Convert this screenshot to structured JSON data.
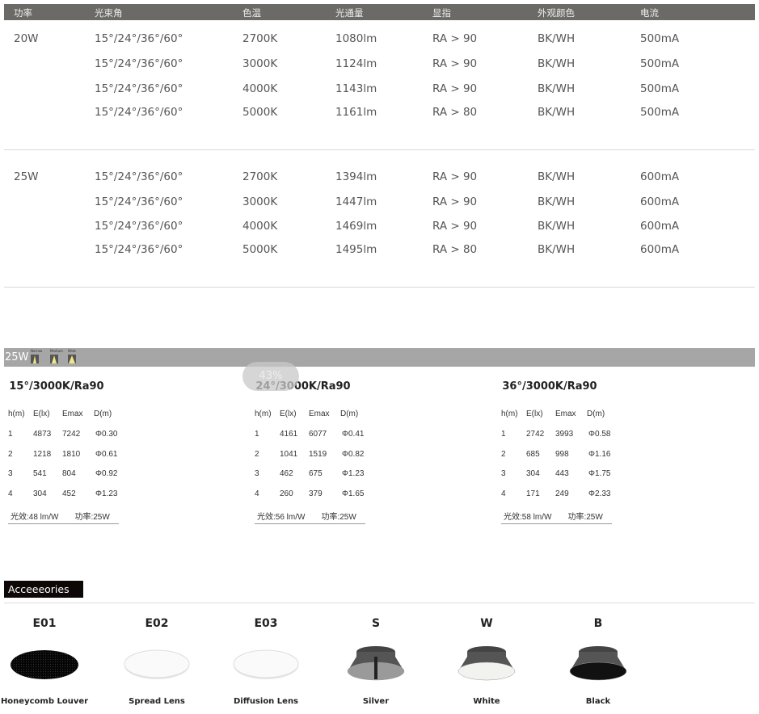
{
  "spec_table": {
    "headers": [
      "功率",
      "光束角",
      "色温",
      "光通量",
      "显指",
      "外观颜色",
      "电流"
    ],
    "groups": [
      {
        "power": "20W",
        "rows": [
          [
            "15°/24°/36°/60°",
            "2700K",
            "1080lm",
            "RA > 90",
            "BK/WH",
            "500mA"
          ],
          [
            "15°/24°/36°/60°",
            "3000K",
            "1124lm",
            "RA > 90",
            "BK/WH",
            "500mA"
          ],
          [
            "15°/24°/36°/60°",
            "4000K",
            "1143lm",
            "RA > 90",
            "BK/WH",
            "500mA"
          ],
          [
            "15°/24°/36°/60°",
            "5000K",
            "1161lm",
            "RA > 80",
            "BK/WH",
            "500mA"
          ]
        ]
      },
      {
        "power": "25W",
        "rows": [
          [
            "15°/24°/36°/60°",
            "2700K",
            "1394lm",
            "RA > 90",
            "BK/WH",
            "600mA"
          ],
          [
            "15°/24°/36°/60°",
            "3000K",
            "1447lm",
            "RA > 90",
            "BK/WH",
            "600mA"
          ],
          [
            "15°/24°/36°/60°",
            "4000K",
            "1469lm",
            "RA > 90",
            "BK/WH",
            "600mA"
          ],
          [
            "15°/24°/36°/60°",
            "5000K",
            "1495lm",
            "RA > 80",
            "BK/WH",
            "600mA"
          ]
        ]
      }
    ]
  },
  "photometric": {
    "power": "25W",
    "beam_icons": [
      {
        "label": "Narrow"
      },
      {
        "label": "Medium"
      },
      {
        "label": "Wide"
      }
    ],
    "zoom_overlay": "43%",
    "columns": [
      "h(m)",
      "E(lx)",
      "Emax",
      "D(m)"
    ],
    "blocks": [
      {
        "title": "15°/3000K/Ra90",
        "rows": [
          [
            "1",
            "4873",
            "7242",
            "Φ0.30"
          ],
          [
            "2",
            "1218",
            "1810",
            "Φ0.61"
          ],
          [
            "3",
            "541",
            "804",
            "Φ0.92"
          ],
          [
            "4",
            "304",
            "452",
            "Φ1.23"
          ]
        ],
        "efficacy": "光效:48 lm/W",
        "power": "功率:25W"
      },
      {
        "title": "24°/3000K/Ra90",
        "rows": [
          [
            "1",
            "4161",
            "6077",
            "Φ0.41"
          ],
          [
            "2",
            "1041",
            "1519",
            "Φ0.82"
          ],
          [
            "3",
            "462",
            "675",
            "Φ1.23"
          ],
          [
            "4",
            "260",
            "379",
            "Φ1.65"
          ]
        ],
        "efficacy": "光效:56 lm/W",
        "power": "功率:25W"
      },
      {
        "title": "36°/3000K/Ra90",
        "rows": [
          [
            "1",
            "2742",
            "3993",
            "Φ0.58"
          ],
          [
            "2",
            "685",
            "998",
            "Φ1.16"
          ],
          [
            "3",
            "304",
            "443",
            "Φ1.75"
          ],
          [
            "4",
            "171",
            "249",
            "Φ2.33"
          ]
        ],
        "efficacy": "光效:58 lm/W",
        "power": "功率:25W"
      }
    ]
  },
  "accessories": {
    "title": "Acceeeories",
    "items": [
      {
        "code": "E01",
        "name": "Honeycomb Louver",
        "kind": "louver"
      },
      {
        "code": "E02",
        "name": "Spread Lens",
        "kind": "lens"
      },
      {
        "code": "E03",
        "name": "Diffusion Lens",
        "kind": "lens"
      },
      {
        "code": "S",
        "name": "Silver",
        "kind": "reflector",
        "color": "#9a9a9a"
      },
      {
        "code": "W",
        "name": "White",
        "kind": "reflector",
        "color": "#f2f2ee"
      },
      {
        "code": "B",
        "name": "Black",
        "kind": "reflector",
        "color": "#111111"
      }
    ]
  }
}
